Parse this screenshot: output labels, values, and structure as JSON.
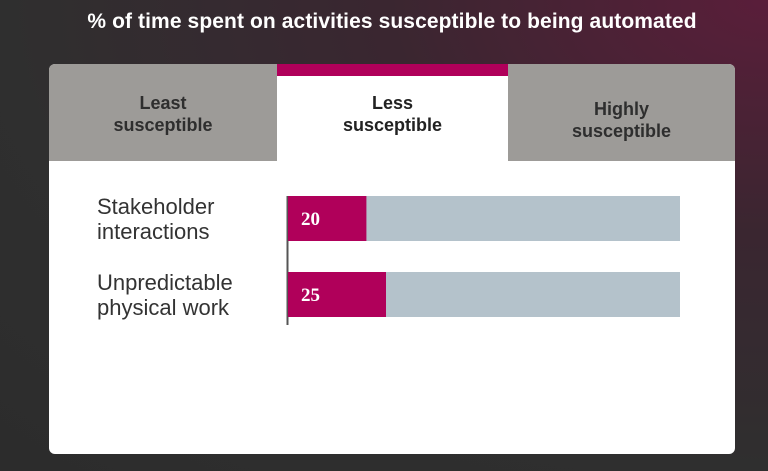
{
  "title": "% of time spent on activities susceptible to being automated",
  "tabs": [
    {
      "line1": "Least",
      "line2": "susceptible",
      "active": false
    },
    {
      "line1": "Less",
      "line2": "susceptible",
      "active": true
    },
    {
      "line1": "Highly",
      "line2": "susceptible",
      "active": false
    }
  ],
  "colors": {
    "accent": "#b0005a",
    "track": "#b4c2cb",
    "tab_inactive": "#9d9b98",
    "panel": "#ffffff"
  },
  "chart_data": {
    "type": "bar",
    "orientation": "horizontal",
    "categories": [
      {
        "line1": "Stakeholder",
        "line2": "interactions"
      },
      {
        "line1": "Unpredictable",
        "line2": "physical work"
      }
    ],
    "values": [
      20,
      25
    ],
    "value_labels": [
      "20",
      "25"
    ],
    "xlim": [
      0,
      100
    ],
    "grid": false
  }
}
